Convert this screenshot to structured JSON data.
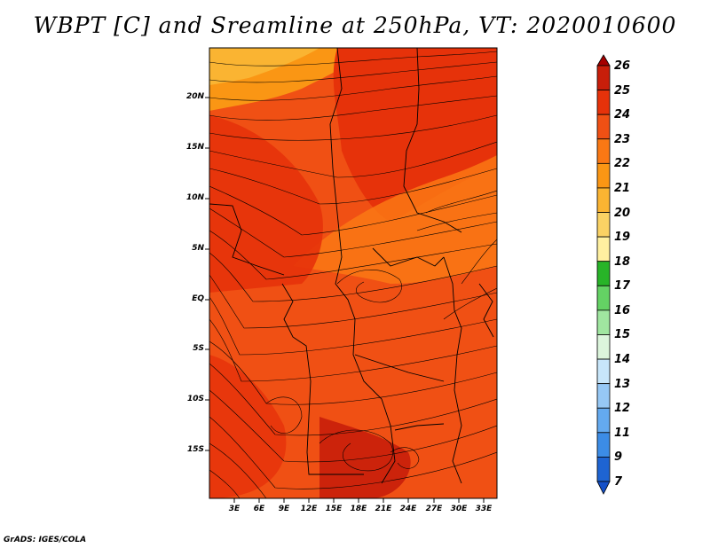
{
  "title": "WBPT [C] and Sreamline at 250hPa, VT: 2020010600",
  "footer": "GrADS: IGES/COLA",
  "y_axis": {
    "labels": [
      "20N",
      "15N",
      "10N",
      "5N",
      "EQ",
      "5S",
      "10S",
      "15S"
    ]
  },
  "x_axis": {
    "labels": [
      "3E",
      "6E",
      "9E",
      "12E",
      "15E",
      "18E",
      "21E",
      "24E",
      "27E",
      "30E",
      "33E"
    ]
  },
  "colorbar": {
    "labels": [
      "26",
      "25",
      "24",
      "23",
      "22",
      "21",
      "20",
      "19",
      "18",
      "17",
      "16",
      "15",
      "14",
      "13",
      "12",
      "11",
      "9",
      "7"
    ],
    "colors": [
      "#a50000",
      "#c81e0a",
      "#e6320a",
      "#f05014",
      "#fa7814",
      "#fa9614",
      "#fab432",
      "#fad264",
      "#fff0a0",
      "#28b428",
      "#64d264",
      "#a0e6a0",
      "#dcf5dc",
      "#c8e6fa",
      "#96c8f5",
      "#64aaf0",
      "#3c8ce6",
      "#1e64d2",
      "#1450c8"
    ]
  },
  "map": {
    "field": "WBPT",
    "units": "C",
    "dominant_colors": [
      "#f05014",
      "#e6320a",
      "#fa7814",
      "#fab432"
    ]
  }
}
